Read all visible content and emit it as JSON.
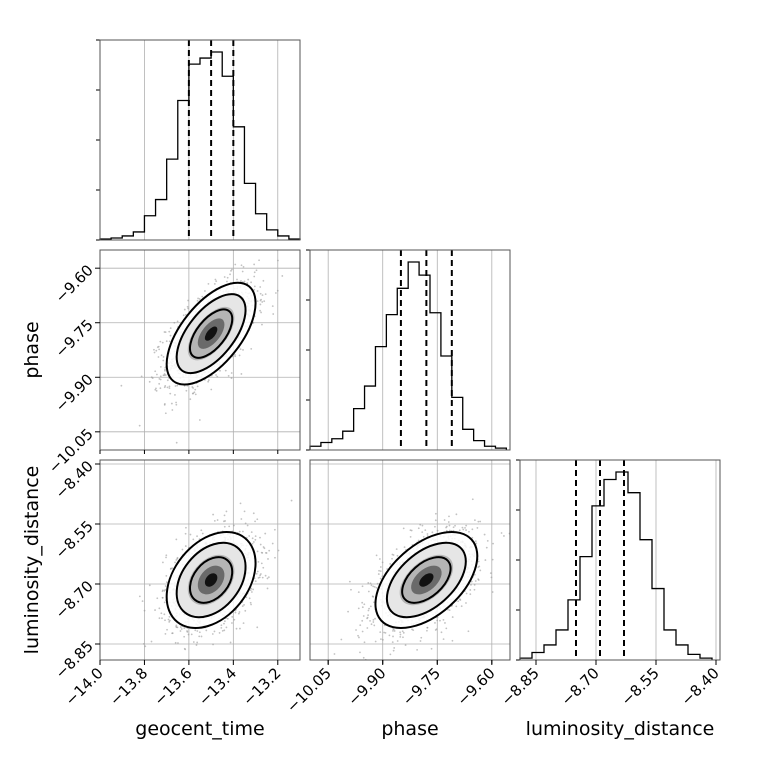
{
  "chart_data": {
    "type": "corner",
    "parameters": [
      "geocent_time",
      "phase",
      "luminosity_distance"
    ],
    "axis_labels": {
      "bottom": [
        "geocent_time",
        "phase",
        "luminosity_distance"
      ],
      "left": [
        "phase",
        "luminosity_distance"
      ]
    },
    "ranges": {
      "geocent_time": [
        -14.0,
        -13.1
      ],
      "phase": [
        -10.1,
        -9.55
      ],
      "luminosity_distance": [
        -8.89,
        -8.39
      ]
    },
    "ticks": {
      "geocent_time": [
        "−14.0",
        "−13.8",
        "−13.6",
        "−13.4",
        "−13.2"
      ],
      "phase": [
        "−10.05",
        "−9.90",
        "−9.75",
        "−9.60"
      ],
      "luminosity_distance": [
        "−8.85",
        "−8.70",
        "−8.55",
        "−8.40"
      ]
    },
    "tick_values": {
      "geocent_time": [
        -14.0,
        -13.8,
        -13.6,
        -13.4,
        -13.2
      ],
      "phase": [
        -10.05,
        -9.9,
        -9.75,
        -9.6
      ],
      "luminosity_distance": [
        -8.85,
        -8.7,
        -8.55,
        -8.4
      ]
    },
    "quantiles": {
      "geocent_time": [
        -13.6,
        -13.5,
        -13.4
      ],
      "phase": [
        -9.85,
        -9.78,
        -9.71
      ],
      "luminosity_distance": [
        -8.75,
        -8.69,
        -8.63
      ]
    },
    "histograms": {
      "geocent_time": {
        "edges": [
          -14.0,
          -13.95,
          -13.9,
          -13.85,
          -13.8,
          -13.75,
          -13.7,
          -13.65,
          -13.6,
          -13.55,
          -13.5,
          -13.45,
          -13.4,
          -13.35,
          -13.3,
          -13.25,
          -13.2,
          -13.15,
          -13.1
        ],
        "counts": [
          0.005,
          0.01,
          0.02,
          0.04,
          0.12,
          0.2,
          0.4,
          0.69,
          0.87,
          0.9,
          0.93,
          0.81,
          0.56,
          0.28,
          0.13,
          0.05,
          0.02,
          0.005
        ]
      },
      "phase": {
        "edges": [
          -10.1,
          -10.07,
          -10.04,
          -10.01,
          -9.98,
          -9.95,
          -9.92,
          -9.89,
          -9.86,
          -9.83,
          -9.8,
          -9.77,
          -9.74,
          -9.71,
          -9.68,
          -9.65,
          -9.62,
          -9.59,
          -9.56
        ],
        "counts": [
          0.02,
          0.04,
          0.06,
          0.1,
          0.22,
          0.34,
          0.55,
          0.72,
          0.86,
          1.0,
          0.93,
          0.73,
          0.5,
          0.28,
          0.11,
          0.05,
          0.02,
          0.01
        ]
      },
      "luminosity_distance": {
        "edges": [
          -8.89,
          -8.86,
          -8.83,
          -8.8,
          -8.77,
          -8.74,
          -8.71,
          -8.68,
          -8.65,
          -8.62,
          -8.59,
          -8.56,
          -8.53,
          -8.5,
          -8.47,
          -8.44,
          -8.41
        ],
        "counts": [
          0.01,
          0.04,
          0.08,
          0.16,
          0.32,
          0.55,
          0.82,
          0.96,
          1.0,
          0.89,
          0.64,
          0.38,
          0.16,
          0.08,
          0.03,
          0.01
        ]
      }
    },
    "correlations": {
      "geocent_time|phase": 0.6,
      "geocent_time|luminosity_distance": 0.35,
      "phase|luminosity_distance": 0.5
    },
    "sigmas": {
      "geocent_time": 0.1,
      "phase": 0.07,
      "luminosity_distance": 0.06
    },
    "medians": {
      "geocent_time": -13.5,
      "phase": -9.78,
      "luminosity_distance": -8.69
    },
    "grid": true,
    "colors": {
      "line": "#000000",
      "grid": "#b0b0b0",
      "scatter": "#9a9a9a"
    }
  }
}
